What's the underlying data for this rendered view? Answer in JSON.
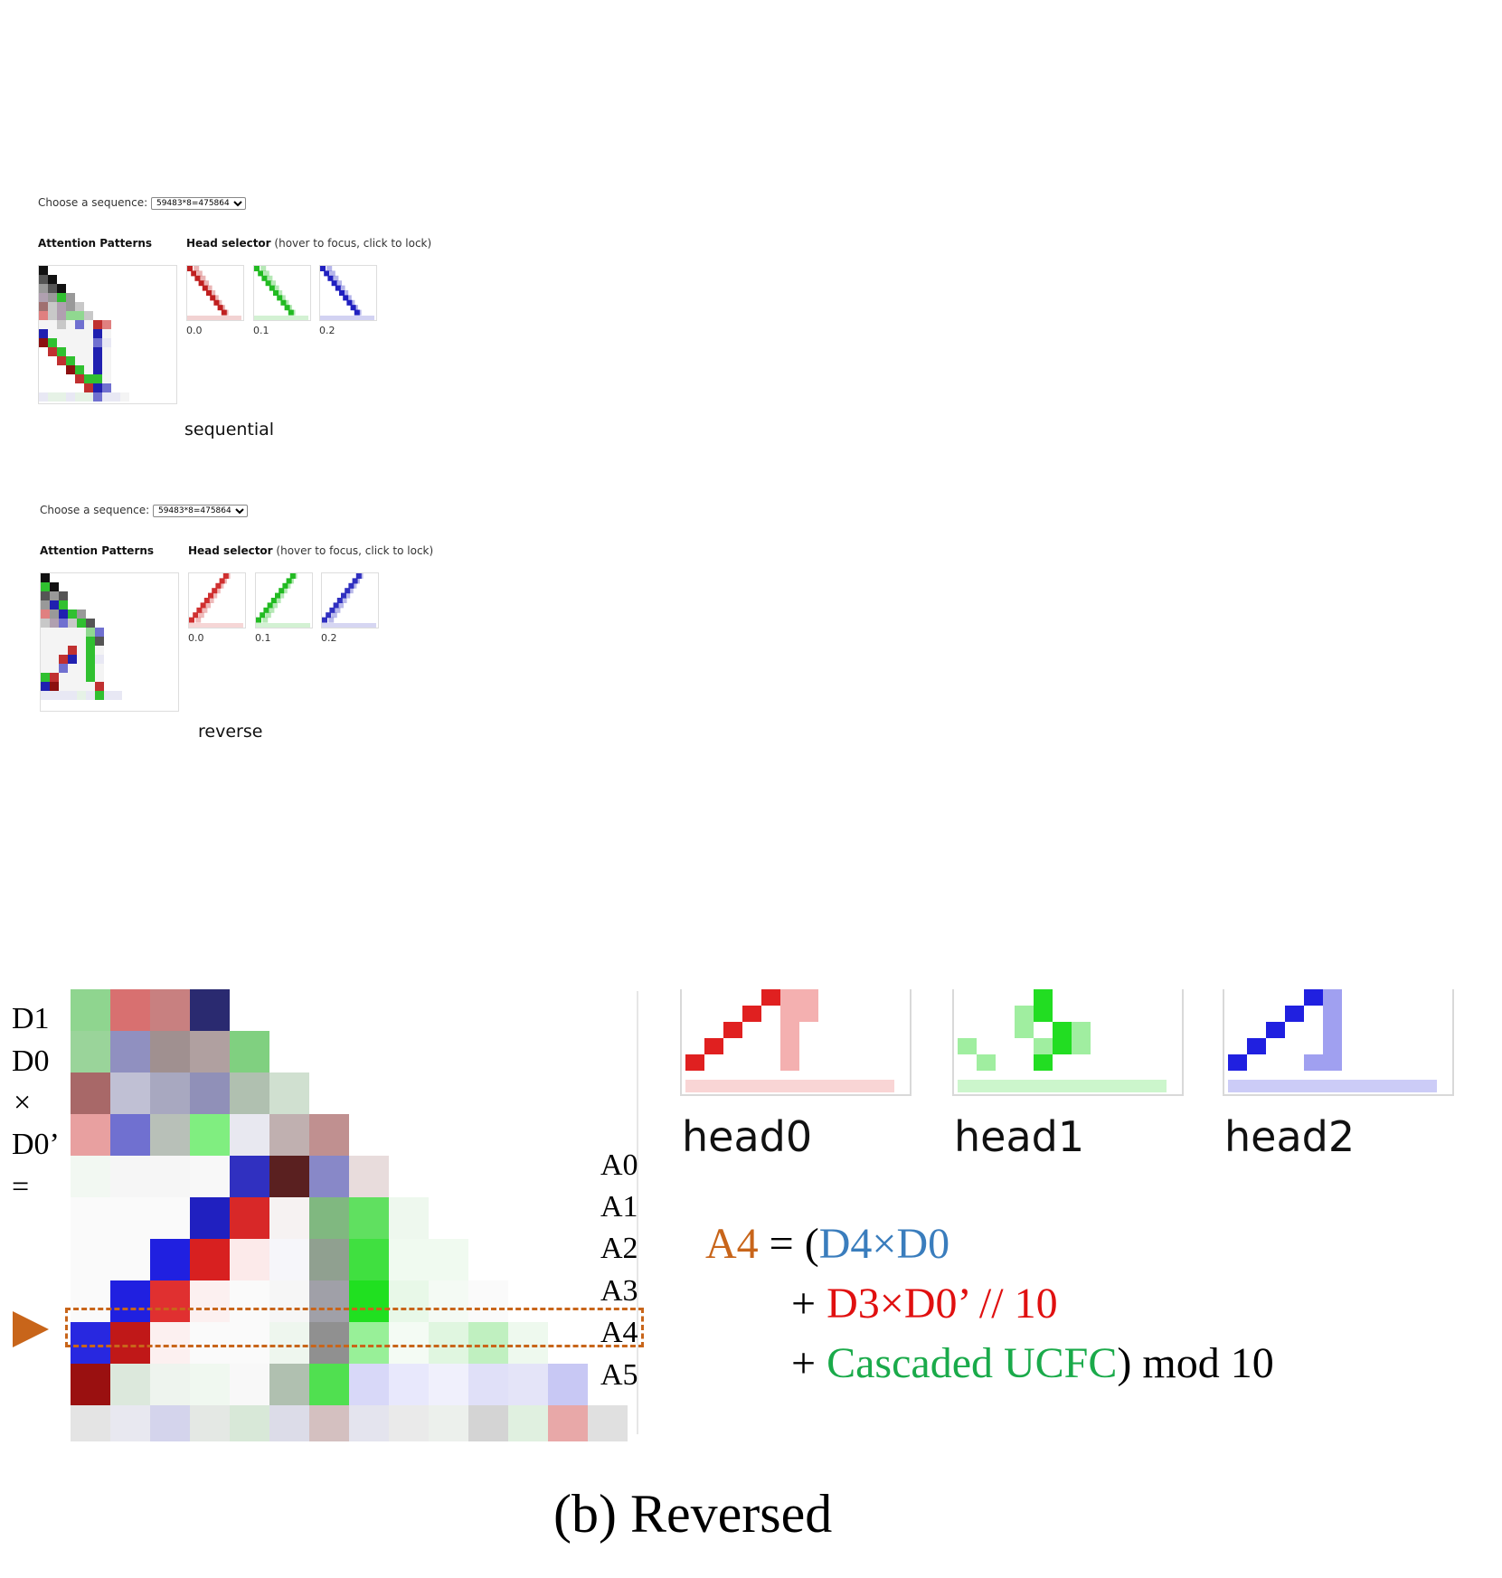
{
  "panels": [
    {
      "choose_label": "Choose a sequence:",
      "selected_sequence": "59483*8=475864",
      "attention_title": "Attention Patterns",
      "head_selector_title": "Head selector",
      "head_selector_hint": "(hover to focus, click to lock)",
      "heads": [
        {
          "label": "0.0"
        },
        {
          "label": "0.1"
        },
        {
          "label": "0.2"
        }
      ],
      "caption": "sequential"
    },
    {
      "choose_label": "Choose a sequence:",
      "selected_sequence": "59483*8=475864",
      "attention_title": "Attention Patterns",
      "head_selector_title": "Head selector",
      "head_selector_hint": "(hover to focus, click to lock)",
      "heads": [
        {
          "label": "0.0"
        },
        {
          "label": "0.1"
        },
        {
          "label": "0.2"
        }
      ],
      "caption": "reverse"
    }
  ],
  "zoom": {
    "side_labels": [
      "D1",
      "D0",
      "×",
      "D0’",
      "="
    ],
    "row_labels": [
      "A0",
      "A1",
      "A2",
      "A3",
      "A4",
      "A5"
    ],
    "heads": [
      {
        "label": "head0"
      },
      {
        "label": "head1"
      },
      {
        "label": "head2"
      }
    ],
    "formula": {
      "lhs": "A4",
      "eq_open": " = (",
      "term1": "D4×D0",
      "plus1": "+ ",
      "term2": "D3×D0’ // 10",
      "plus2": "+ ",
      "term3": "Cascaded UCFC",
      "tail": ") mod 10"
    },
    "caption": "(b) Reversed"
  },
  "colors": {
    "head0": "#d42020",
    "head1": "#22cc22",
    "head2": "#2020cc",
    "highlight": "#c8651a",
    "term1": "#3a7dbd",
    "term2": "#e01010",
    "term3": "#1aaa4a"
  },
  "icons": {
    "arrow": "triangle-right",
    "dropdown": "chevron-down"
  }
}
